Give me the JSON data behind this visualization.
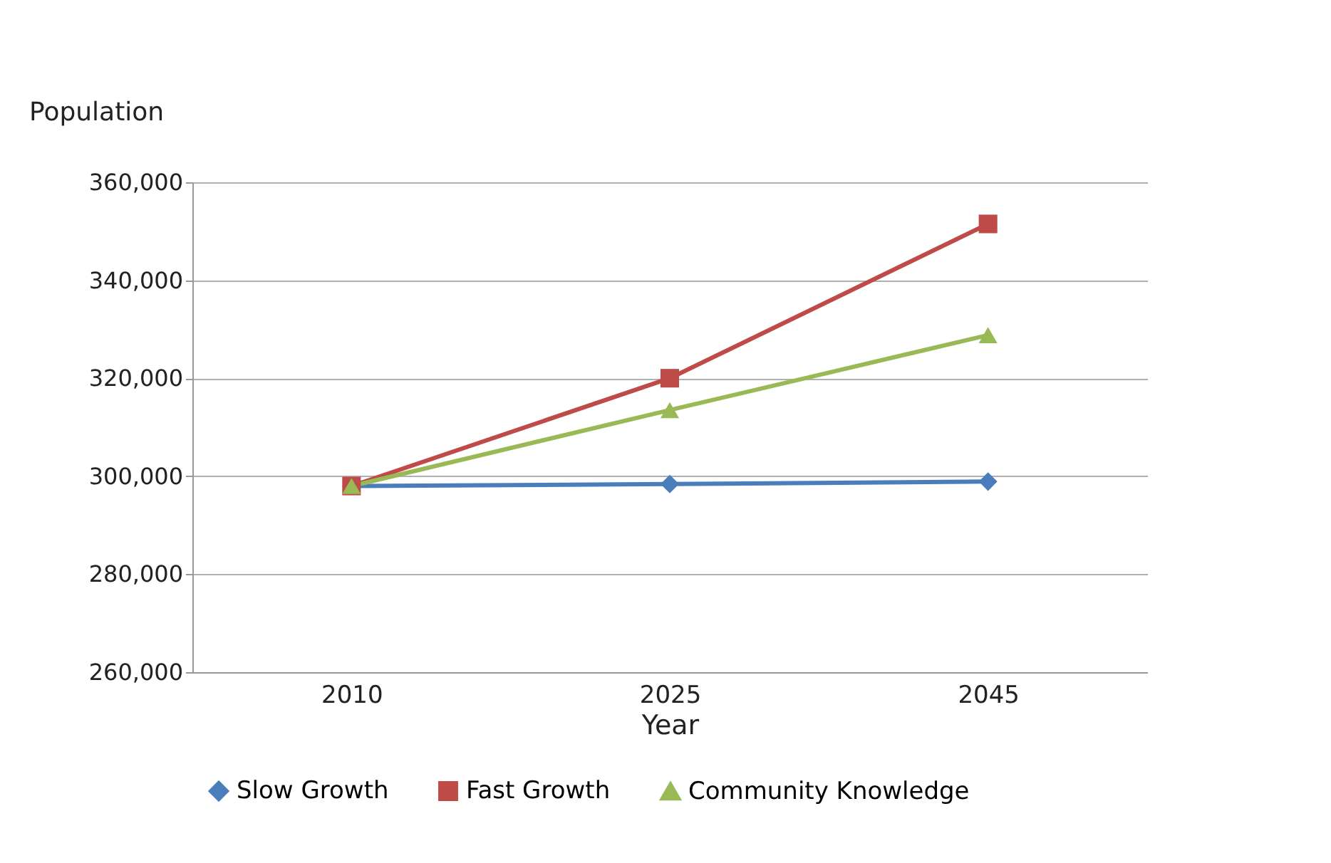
{
  "chart_data": {
    "type": "line",
    "xlabel": "Year",
    "ylabel": "Population",
    "categories": [
      "2010",
      "2025",
      "2045"
    ],
    "series": [
      {
        "name": "Slow Growth",
        "color": "#4a7ebb",
        "marker": "diamond",
        "values": [
          298000,
          298400,
          298900
        ]
      },
      {
        "name": "Fast Growth",
        "color": "#be4b48",
        "marker": "square",
        "values": [
          298000,
          320000,
          351500
        ]
      },
      {
        "name": "Community Knowledge",
        "color": "#98b954",
        "marker": "triangle",
        "values": [
          298000,
          313500,
          328800
        ]
      }
    ],
    "ylim": [
      260000,
      360000
    ],
    "yticks": [
      {
        "value": 260000,
        "label": "260,000"
      },
      {
        "value": 280000,
        "label": "280,000"
      },
      {
        "value": 300000,
        "label": "300,000"
      },
      {
        "value": 320000,
        "label": "320,000"
      },
      {
        "value": 340000,
        "label": "340,000"
      },
      {
        "value": 360000,
        "label": "360,000"
      }
    ],
    "grid": "y",
    "legend": "bottom"
  }
}
